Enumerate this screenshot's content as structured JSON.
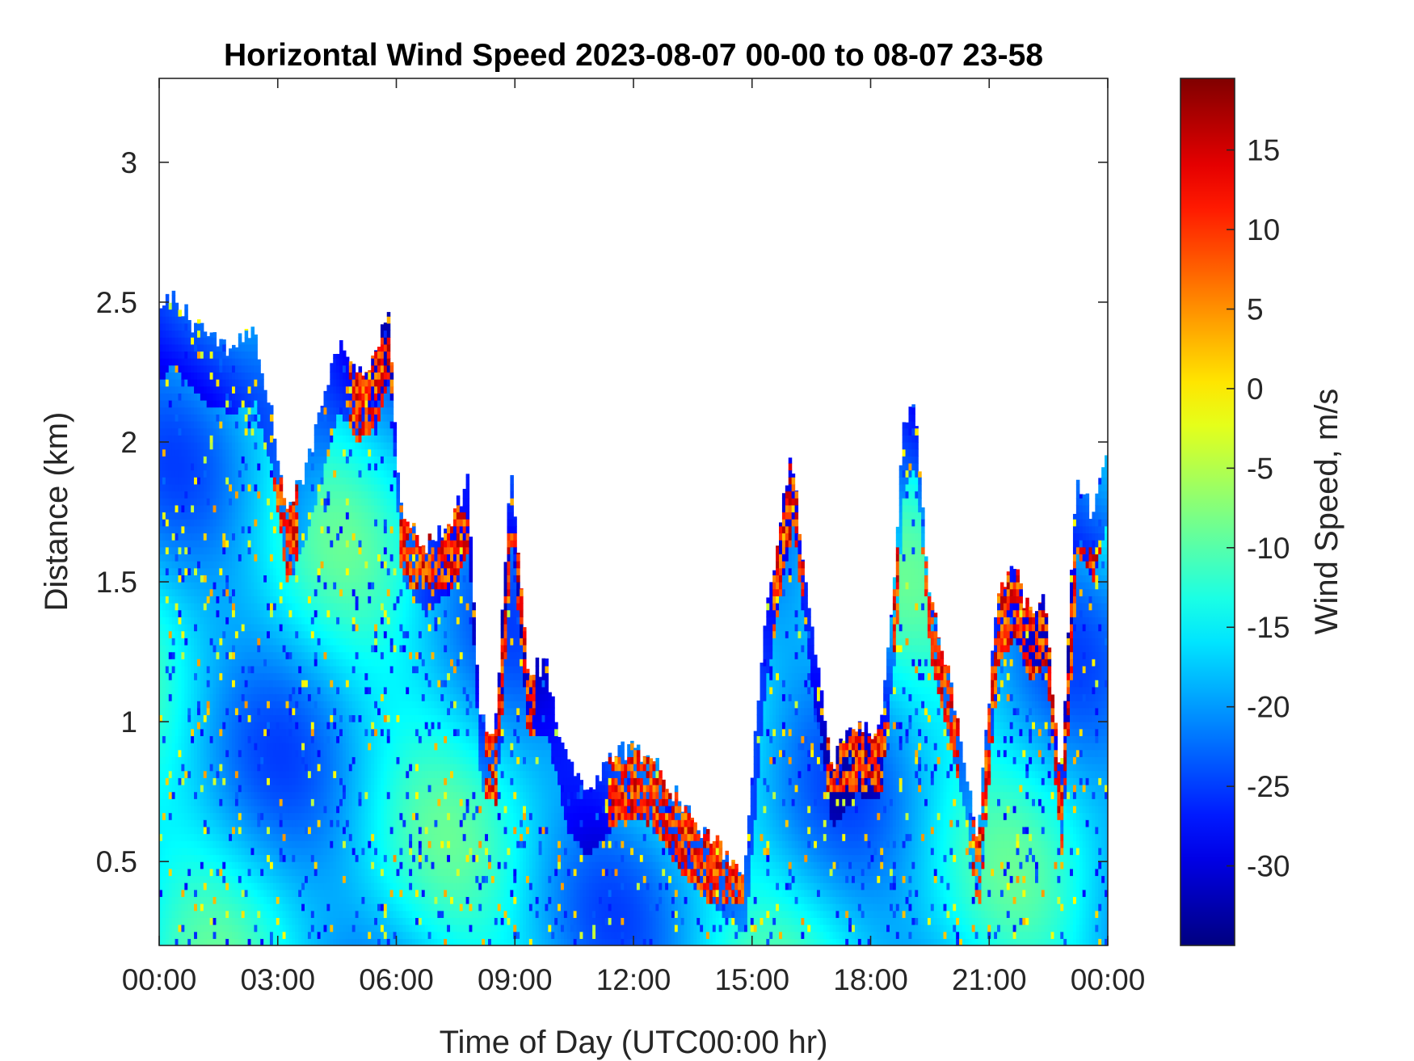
{
  "chart_data": {
    "type": "heatmap",
    "title": "Horizontal Wind Speed 2023-08-07 00-00 to 08-07 23-58",
    "xlabel": "Time of Day (UTC00:00 hr)",
    "ylabel": "Distance (km)",
    "colorbar_label": "Wind Speed, m/s",
    "x_unit": "hours",
    "xlim": [
      0,
      24
    ],
    "ylim": [
      0.2,
      3.3
    ],
    "clim": [
      -35,
      19.5
    ],
    "colormap": "jet",
    "x_ticks": [
      0,
      3,
      6,
      9,
      12,
      15,
      18,
      21,
      24
    ],
    "x_tick_labels": [
      "00:00",
      "03:00",
      "06:00",
      "09:00",
      "12:00",
      "15:00",
      "18:00",
      "21:00",
      "00:00"
    ],
    "y_ticks": [
      0.5,
      1,
      1.5,
      2,
      2.5,
      3
    ],
    "y_tick_labels": [
      "0.5",
      "1",
      "1.5",
      "2",
      "2.5",
      "3"
    ],
    "colorbar_ticks": [
      -30,
      -25,
      -20,
      -15,
      -10,
      -5,
      0,
      5,
      10,
      15
    ],
    "colorbar_tick_labels": [
      "-30",
      "-25",
      "-20",
      "-15",
      "-10",
      "-5",
      "0",
      "5",
      "10",
      "15"
    ],
    "data_top_km_by_hour": [
      [
        0.0,
        2.45
      ],
      [
        0.3,
        2.52
      ],
      [
        0.7,
        2.45
      ],
      [
        1.2,
        2.37
      ],
      [
        1.8,
        2.34
      ],
      [
        2.4,
        2.38
      ],
      [
        2.8,
        2.15
      ],
      [
        3.2,
        1.75
      ],
      [
        3.7,
        1.9
      ],
      [
        4.5,
        2.35
      ],
      [
        5.0,
        2.25
      ],
      [
        5.5,
        2.3
      ],
      [
        5.8,
        2.5
      ],
      [
        6.1,
        1.75
      ],
      [
        6.7,
        1.62
      ],
      [
        7.3,
        1.7
      ],
      [
        7.8,
        1.85
      ],
      [
        8.1,
        1.0
      ],
      [
        8.5,
        0.95
      ],
      [
        8.9,
        1.9
      ],
      [
        9.3,
        1.2
      ],
      [
        9.8,
        1.2
      ],
      [
        10.3,
        0.85
      ],
      [
        10.8,
        0.75
      ],
      [
        11.4,
        0.85
      ],
      [
        11.8,
        0.9
      ],
      [
        12.4,
        0.88
      ],
      [
        13.0,
        0.75
      ],
      [
        13.5,
        0.65
      ],
      [
        14.2,
        0.55
      ],
      [
        14.8,
        0.48
      ],
      [
        15.3,
        1.35
      ],
      [
        15.7,
        1.7
      ],
      [
        16.0,
        1.95
      ],
      [
        16.5,
        1.35
      ],
      [
        17.0,
        0.85
      ],
      [
        17.6,
        0.98
      ],
      [
        18.2,
        0.95
      ],
      [
        18.6,
        1.5
      ],
      [
        18.8,
        2.05
      ],
      [
        19.1,
        2.15
      ],
      [
        19.5,
        1.45
      ],
      [
        19.9,
        1.2
      ],
      [
        20.3,
        0.95
      ],
      [
        20.7,
        0.55
      ],
      [
        21.2,
        1.45
      ],
      [
        21.6,
        1.55
      ],
      [
        22.0,
        1.4
      ],
      [
        22.4,
        1.45
      ],
      [
        22.8,
        0.75
      ],
      [
        23.2,
        1.85
      ],
      [
        23.6,
        1.75
      ],
      [
        24.0,
        2.0
      ]
    ],
    "shear_bands": [
      {
        "x": [
          2.8,
          3.5
        ],
        "y": [
          1.4,
          1.85
        ]
      },
      {
        "x": [
          4.8,
          5.9
        ],
        "y": [
          1.9,
          2.35
        ]
      },
      {
        "x": [
          6.0,
          7.8
        ],
        "y": [
          1.45,
          1.75
        ]
      },
      {
        "x": [
          8.2,
          9.5
        ],
        "y": [
          0.25,
          1.65
        ]
      },
      {
        "x": [
          11.3,
          14.8
        ],
        "y": [
          0.35,
          0.9
        ]
      },
      {
        "x": [
          15.5,
          16.3
        ],
        "y": [
          0.7,
          1.95
        ]
      },
      {
        "x": [
          16.8,
          18.5
        ],
        "y": [
          0.75,
          1.0
        ]
      },
      {
        "x": [
          18.5,
          20.2
        ],
        "y": [
          0.55,
          1.6
        ]
      },
      {
        "x": [
          20.5,
          24.0
        ],
        "y": [
          0.35,
          1.6
        ]
      }
    ]
  }
}
